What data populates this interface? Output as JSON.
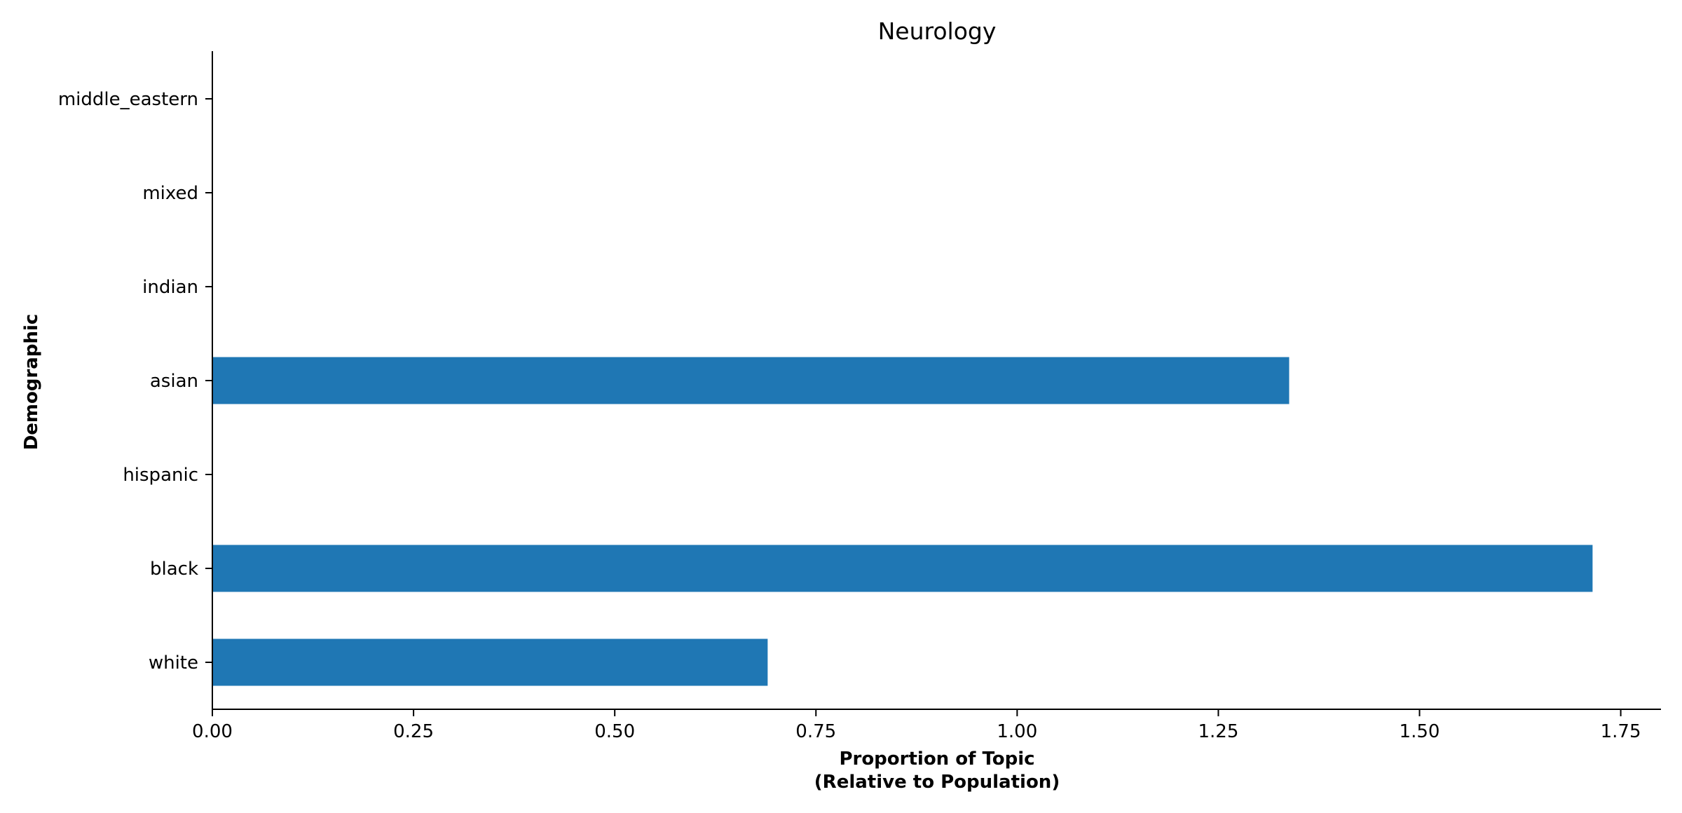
{
  "chart_data": {
    "type": "bar",
    "orientation": "horizontal",
    "title": "Neurology",
    "xlabel_lines": [
      "Proportion of Topic",
      "(Relative to Population)"
    ],
    "ylabel": "Demographic",
    "categories": [
      "white",
      "black",
      "hispanic",
      "asian",
      "indian",
      "mixed",
      "middle_eastern"
    ],
    "values": [
      0.69,
      1.715,
      0,
      1.338,
      0,
      0,
      0
    ],
    "xlim": [
      0,
      1.8
    ],
    "xticks": [
      0.0,
      0.25,
      0.5,
      0.75,
      1.0,
      1.25,
      1.5,
      1.75
    ],
    "xtick_labels": [
      "0.00",
      "0.25",
      "0.50",
      "0.75",
      "1.00",
      "1.25",
      "1.50",
      "1.75"
    ],
    "bar_color": "#1f77b4",
    "grid": false,
    "legend": "none"
  }
}
